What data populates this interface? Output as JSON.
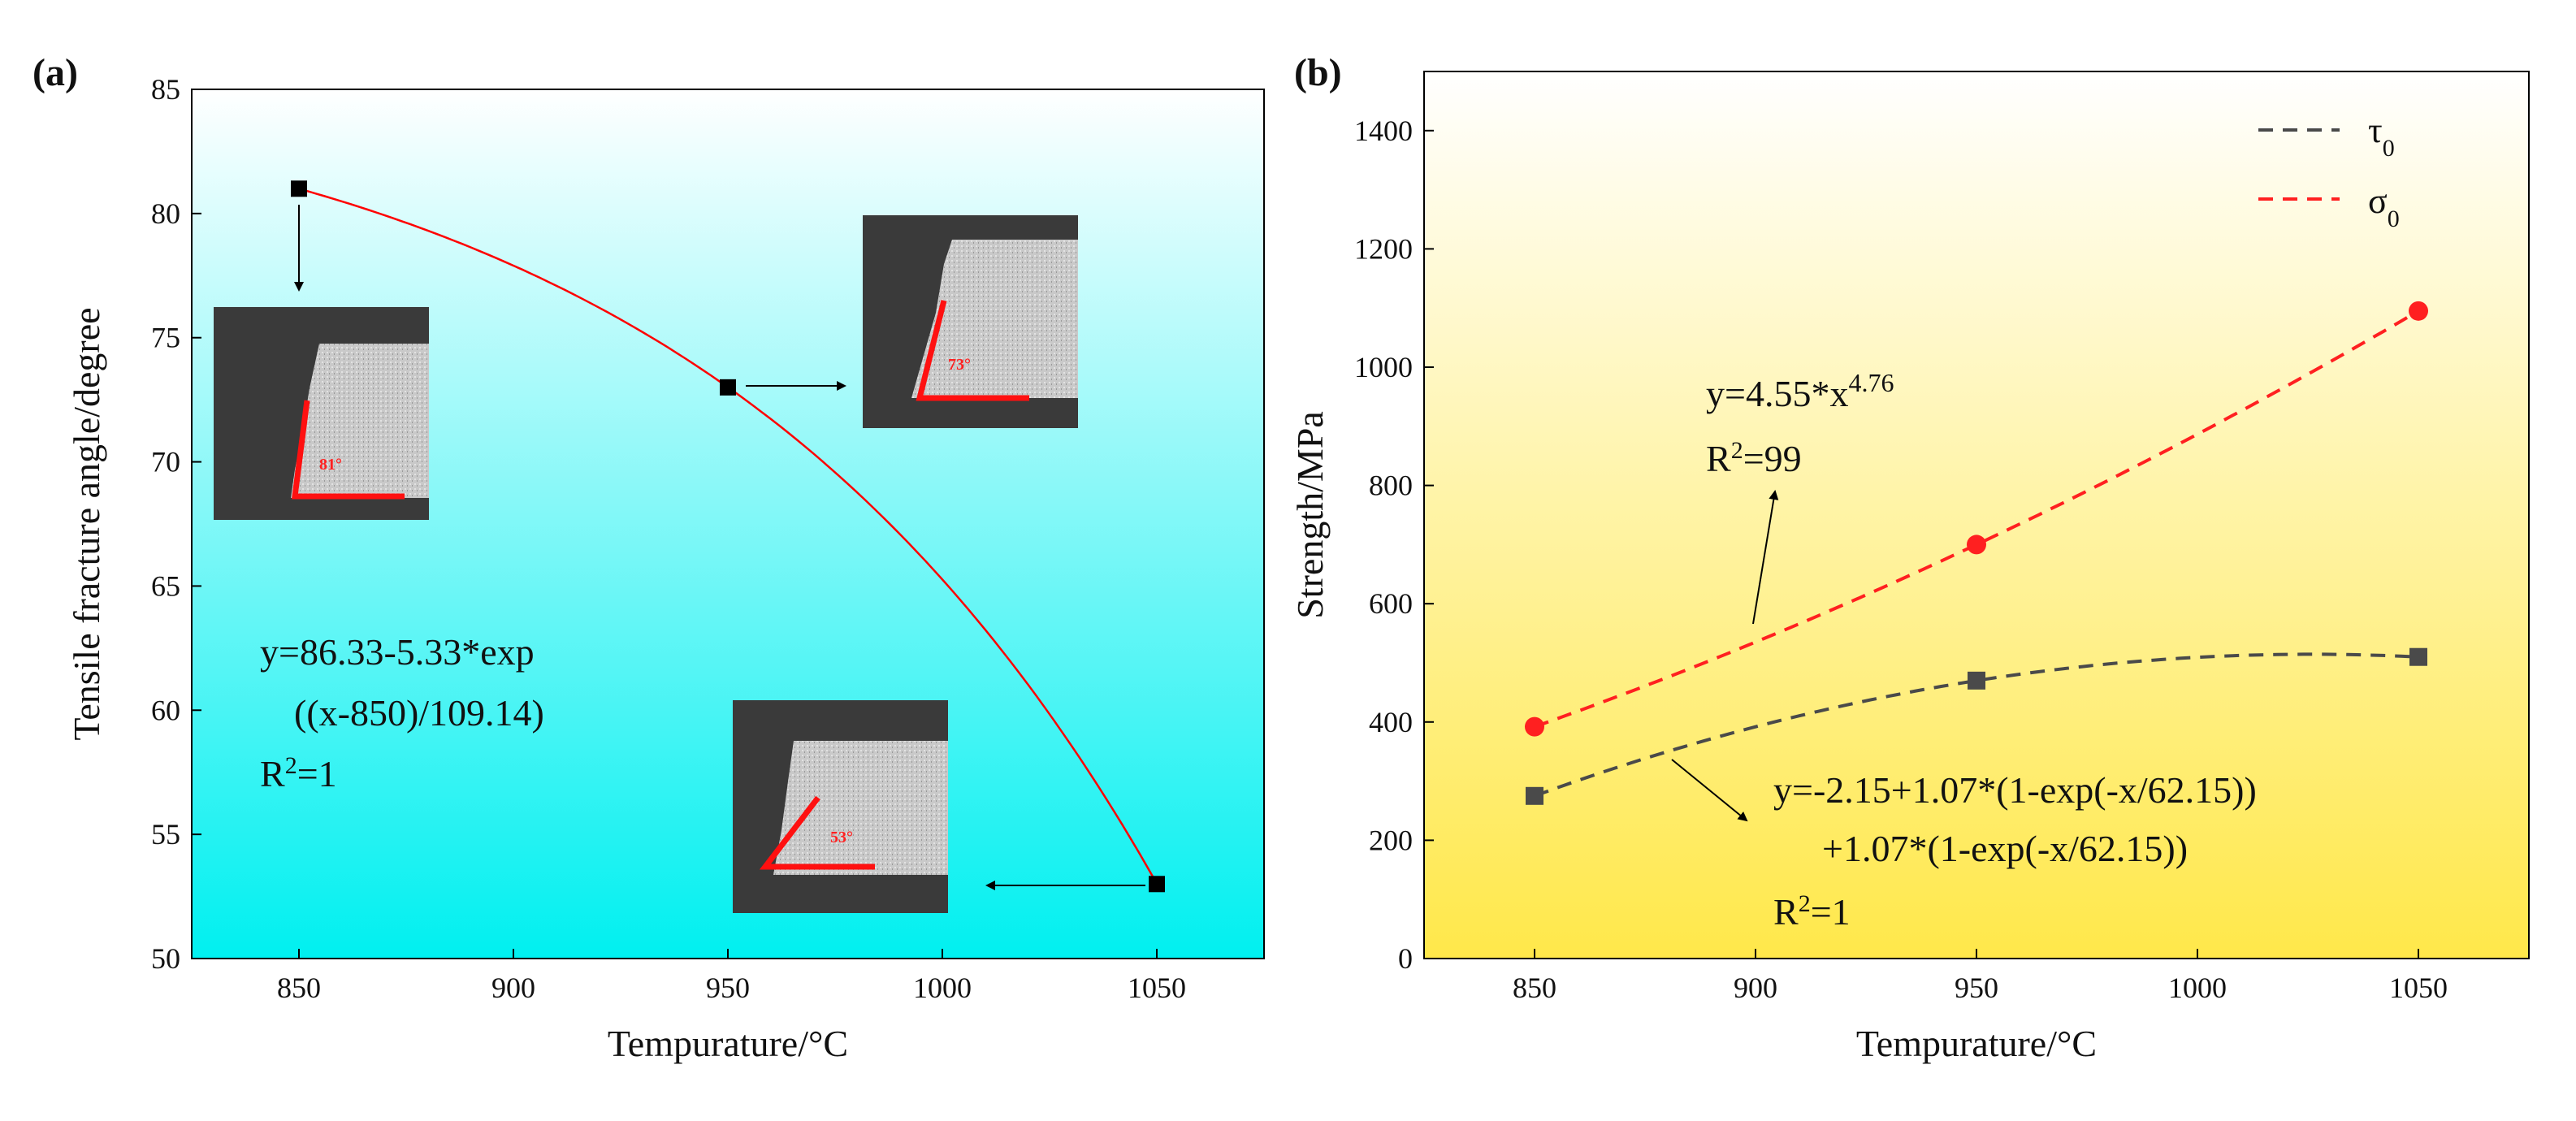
{
  "chart_data": [
    {
      "type": "scatter",
      "panel_label": "(a)",
      "xlabel": "Tempurature/°C",
      "ylabel": "Tensile fracture angle/degree",
      "xlim": [
        825,
        1075
      ],
      "ylim": [
        50,
        85
      ],
      "xticks": [
        850,
        900,
        950,
        1000,
        1050
      ],
      "yticks": [
        50,
        55,
        60,
        65,
        70,
        75,
        80,
        85
      ],
      "series": [
        {
          "name": "fracture angle",
          "marker": "square",
          "color": "#000000",
          "x": [
            850,
            950,
            1050
          ],
          "y": [
            81,
            73,
            53
          ]
        }
      ],
      "fit": {
        "color": "#ff0000",
        "model": "86.33-5.33*exp((x-850)/109.14)"
      },
      "equation": {
        "line1": "y=86.33-5.33*exp",
        "line2": "((x-850)/109.14)",
        "r2_prefix": "R",
        "r2_sup": "2",
        "r2_suffix": "=1"
      },
      "insets": [
        {
          "label": "81°",
          "target_x": 850,
          "angle": 81
        },
        {
          "label": "73°",
          "target_x": 950,
          "angle": 73
        },
        {
          "label": "53°",
          "target_x": 1050,
          "angle": 53
        }
      ],
      "background_gradient": [
        "#ffffff",
        "#00f0f0"
      ]
    },
    {
      "type": "scatter",
      "panel_label": "(b)",
      "xlabel": "Tempurature/°C",
      "ylabel": "Strength/MPa",
      "xlim": [
        825,
        1075
      ],
      "ylim": [
        0,
        1500
      ],
      "xticks": [
        850,
        900,
        950,
        1000,
        1050
      ],
      "yticks": [
        0,
        200,
        400,
        600,
        800,
        1000,
        1200,
        1400
      ],
      "series": [
        {
          "name": "τ",
          "sub": "0",
          "marker": "square",
          "color": "#4a4a4a",
          "x": [
            850,
            950,
            1050
          ],
          "y": [
            275,
            470,
            510
          ]
        },
        {
          "name": "σ",
          "sub": "0",
          "marker": "circle",
          "color": "#ff2020",
          "x": [
            850,
            950,
            1050
          ],
          "y": [
            392,
            700,
            1095
          ]
        }
      ],
      "equation_sigma": {
        "base": "y=4.55*x",
        "sup": "4.76",
        "r2_prefix": "R",
        "r2_sup": "2",
        "r2_suffix": "=99"
      },
      "equation_tau": {
        "line1": "y=-2.15+1.07*(1-exp(-x/62.15))",
        "line2": "+1.07*(1-exp(-x/62.15))",
        "r2_prefix": "R",
        "r2_sup": "2",
        "r2_suffix": "=1"
      },
      "legend_position": "top-right",
      "background_gradient": [
        "#ffffff",
        "#ffe84a"
      ]
    }
  ]
}
